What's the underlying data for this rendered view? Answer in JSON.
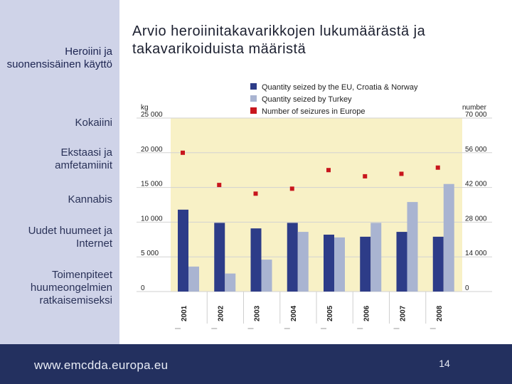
{
  "sidebar": {
    "items": [
      {
        "label": "Heroiini ja suonensisäinen käyttö",
        "active": true
      },
      {
        "label": "Kokaiini"
      },
      {
        "label": "Ekstaasi ja amfetamiinit"
      },
      {
        "label": "Kannabis"
      },
      {
        "label": "Uudet huumeet ja Internet"
      },
      {
        "label": "Toimenpiteet huumeongelmien ratkaisemiseksi"
      }
    ]
  },
  "slide": {
    "title": "Arvio heroiinitakavarikkojen lukumäärästä ja takavarikoiduista määristä",
    "page_number": "14"
  },
  "footer": {
    "url": "www.emcdda.europa.eu"
  },
  "colors": {
    "sidebar_bg": "#cfd3e8",
    "footer_bg": "#23305f",
    "plot_bg": "#f8f1c6",
    "series_eu": "#2d3c88",
    "series_turkey": "#a9b4d1",
    "series_seizures": "#c8161d"
  },
  "chart_data": {
    "type": "bar",
    "title": "Arvio heroiinitakavarikkojen lukumäärästä ja takavarikoiduista määristä",
    "categories": [
      "2001",
      "2002",
      "2003",
      "2004",
      "2005",
      "2006",
      "2007",
      "2008"
    ],
    "left_axis": {
      "unit": "kg",
      "range": [
        0,
        25000
      ],
      "ticks": [
        "0",
        "5 000",
        "10 000",
        "15 000",
        "20 000",
        "25 000"
      ]
    },
    "right_axis": {
      "unit": "number",
      "range": [
        0,
        70000
      ],
      "ticks": [
        "0",
        "14 000",
        "28 000",
        "42 000",
        "56 000",
        "70 000"
      ]
    },
    "series": [
      {
        "name": "Quantity seized by the EU, Croatia & Norway",
        "kind": "bar",
        "axis": "left",
        "values": [
          11800,
          9900,
          9100,
          9900,
          8200,
          7900,
          8600,
          7900
        ]
      },
      {
        "name": "Quantity seized by Turkey",
        "kind": "bar",
        "axis": "left",
        "values": [
          3600,
          2600,
          4600,
          8600,
          7800,
          9900,
          12900,
          15500
        ]
      },
      {
        "name": "Number of seizures in Europe",
        "kind": "marker",
        "axis": "right",
        "values": [
          56000,
          43000,
          39500,
          41500,
          49000,
          46500,
          47500,
          50000
        ]
      }
    ],
    "legend_position": "top"
  }
}
